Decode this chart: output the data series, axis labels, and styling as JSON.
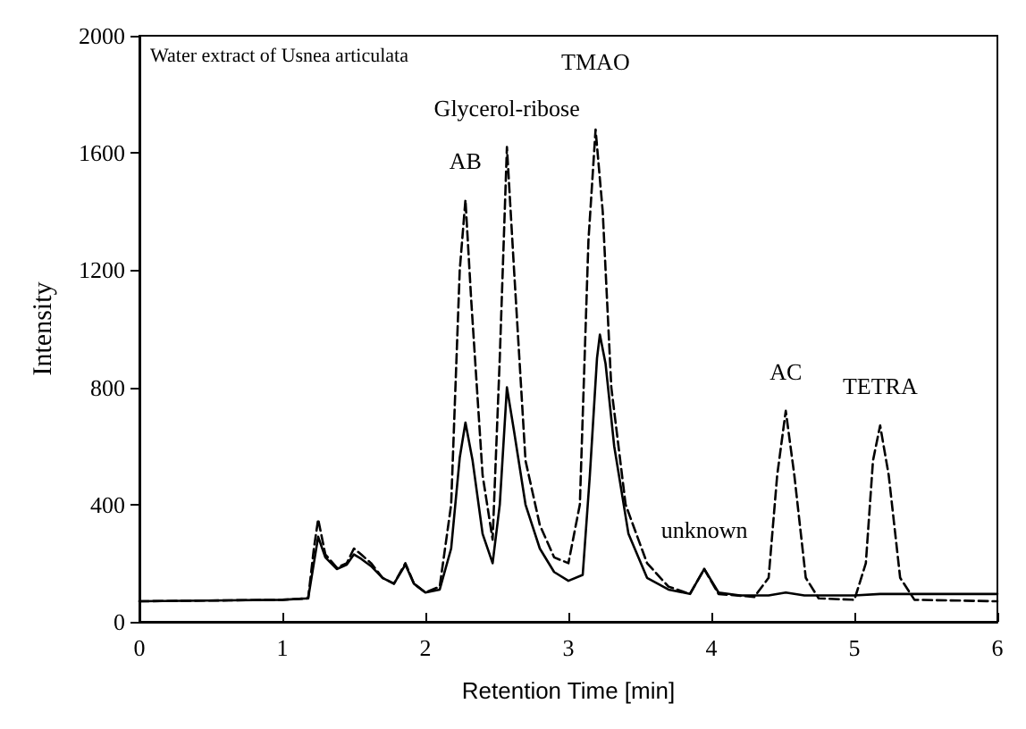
{
  "chart_data": {
    "type": "line",
    "xlabel": "Retention Time [min]",
    "ylabel": "Intensity",
    "xlim": [
      0,
      6
    ],
    "xticks": [
      0,
      1,
      2,
      3,
      4,
      5,
      6
    ],
    "ylim": [
      0,
      2000
    ],
    "yticks": [
      0,
      400,
      800,
      1200,
      1600,
      2000
    ],
    "grid": false,
    "marker": "none",
    "annotations": [
      "Water extract of Usnea articulata",
      {
        "text": "AB",
        "x": 2.28,
        "y": 1440
      },
      {
        "text": "Glycerol-ribose",
        "x": 2.57,
        "y": 1620
      },
      {
        "text": "TMAO",
        "x": 3.19,
        "y": 1680
      },
      {
        "text": "unknown",
        "x": 3.95,
        "y": 180
      },
      {
        "text": "AC",
        "x": 4.52,
        "y": 720
      },
      {
        "text": "TETRA",
        "x": 5.18,
        "y": 670
      }
    ],
    "series": [
      {
        "color": "#000000",
        "line_style": "solid",
        "x": [
          0,
          1.0,
          1.18,
          1.22,
          1.25,
          1.3,
          1.38,
          1.45,
          1.5,
          1.55,
          1.62,
          1.7,
          1.78,
          1.86,
          1.92,
          2.0,
          2.1,
          2.18,
          2.24,
          2.28,
          2.33,
          2.4,
          2.47,
          2.52,
          2.57,
          2.62,
          2.7,
          2.8,
          2.9,
          3.0,
          3.1,
          3.15,
          3.2,
          3.22,
          3.26,
          3.32,
          3.42,
          3.55,
          3.7,
          3.85,
          3.95,
          4.05,
          4.2,
          4.4,
          4.52,
          4.65,
          5.0,
          5.18,
          5.4,
          6
        ],
        "values": [
          70,
          75,
          80,
          200,
          290,
          220,
          180,
          195,
          230,
          215,
          190,
          150,
          130,
          195,
          130,
          100,
          110,
          250,
          560,
          680,
          550,
          300,
          200,
          400,
          800,
          650,
          400,
          250,
          170,
          140,
          160,
          500,
          900,
          980,
          880,
          600,
          300,
          150,
          110,
          95,
          180,
          100,
          90,
          90,
          100,
          90,
          90,
          95,
          95,
          95
        ]
      },
      {
        "color": "#000000",
        "line_style": "dashed",
        "x": [
          0,
          1.0,
          1.18,
          1.22,
          1.25,
          1.3,
          1.38,
          1.45,
          1.5,
          1.55,
          1.62,
          1.7,
          1.78,
          1.86,
          1.92,
          2.0,
          2.1,
          2.18,
          2.24,
          2.28,
          2.32,
          2.4,
          2.47,
          2.52,
          2.57,
          2.62,
          2.7,
          2.8,
          2.9,
          3.0,
          3.08,
          3.14,
          3.19,
          3.24,
          3.3,
          3.4,
          3.55,
          3.7,
          3.85,
          3.95,
          4.05,
          4.3,
          4.4,
          4.46,
          4.52,
          4.58,
          4.66,
          4.75,
          5.0,
          5.08,
          5.13,
          5.18,
          5.24,
          5.32,
          5.42,
          6
        ],
        "values": [
          70,
          75,
          80,
          250,
          350,
          230,
          185,
          200,
          250,
          230,
          200,
          150,
          130,
          200,
          130,
          100,
          120,
          400,
          1200,
          1440,
          1100,
          500,
          280,
          900,
          1620,
          1200,
          550,
          330,
          220,
          200,
          400,
          1300,
          1680,
          1400,
          800,
          400,
          200,
          120,
          95,
          180,
          95,
          85,
          150,
          500,
          720,
          500,
          150,
          80,
          75,
          200,
          550,
          670,
          500,
          150,
          75,
          70
        ]
      }
    ]
  }
}
